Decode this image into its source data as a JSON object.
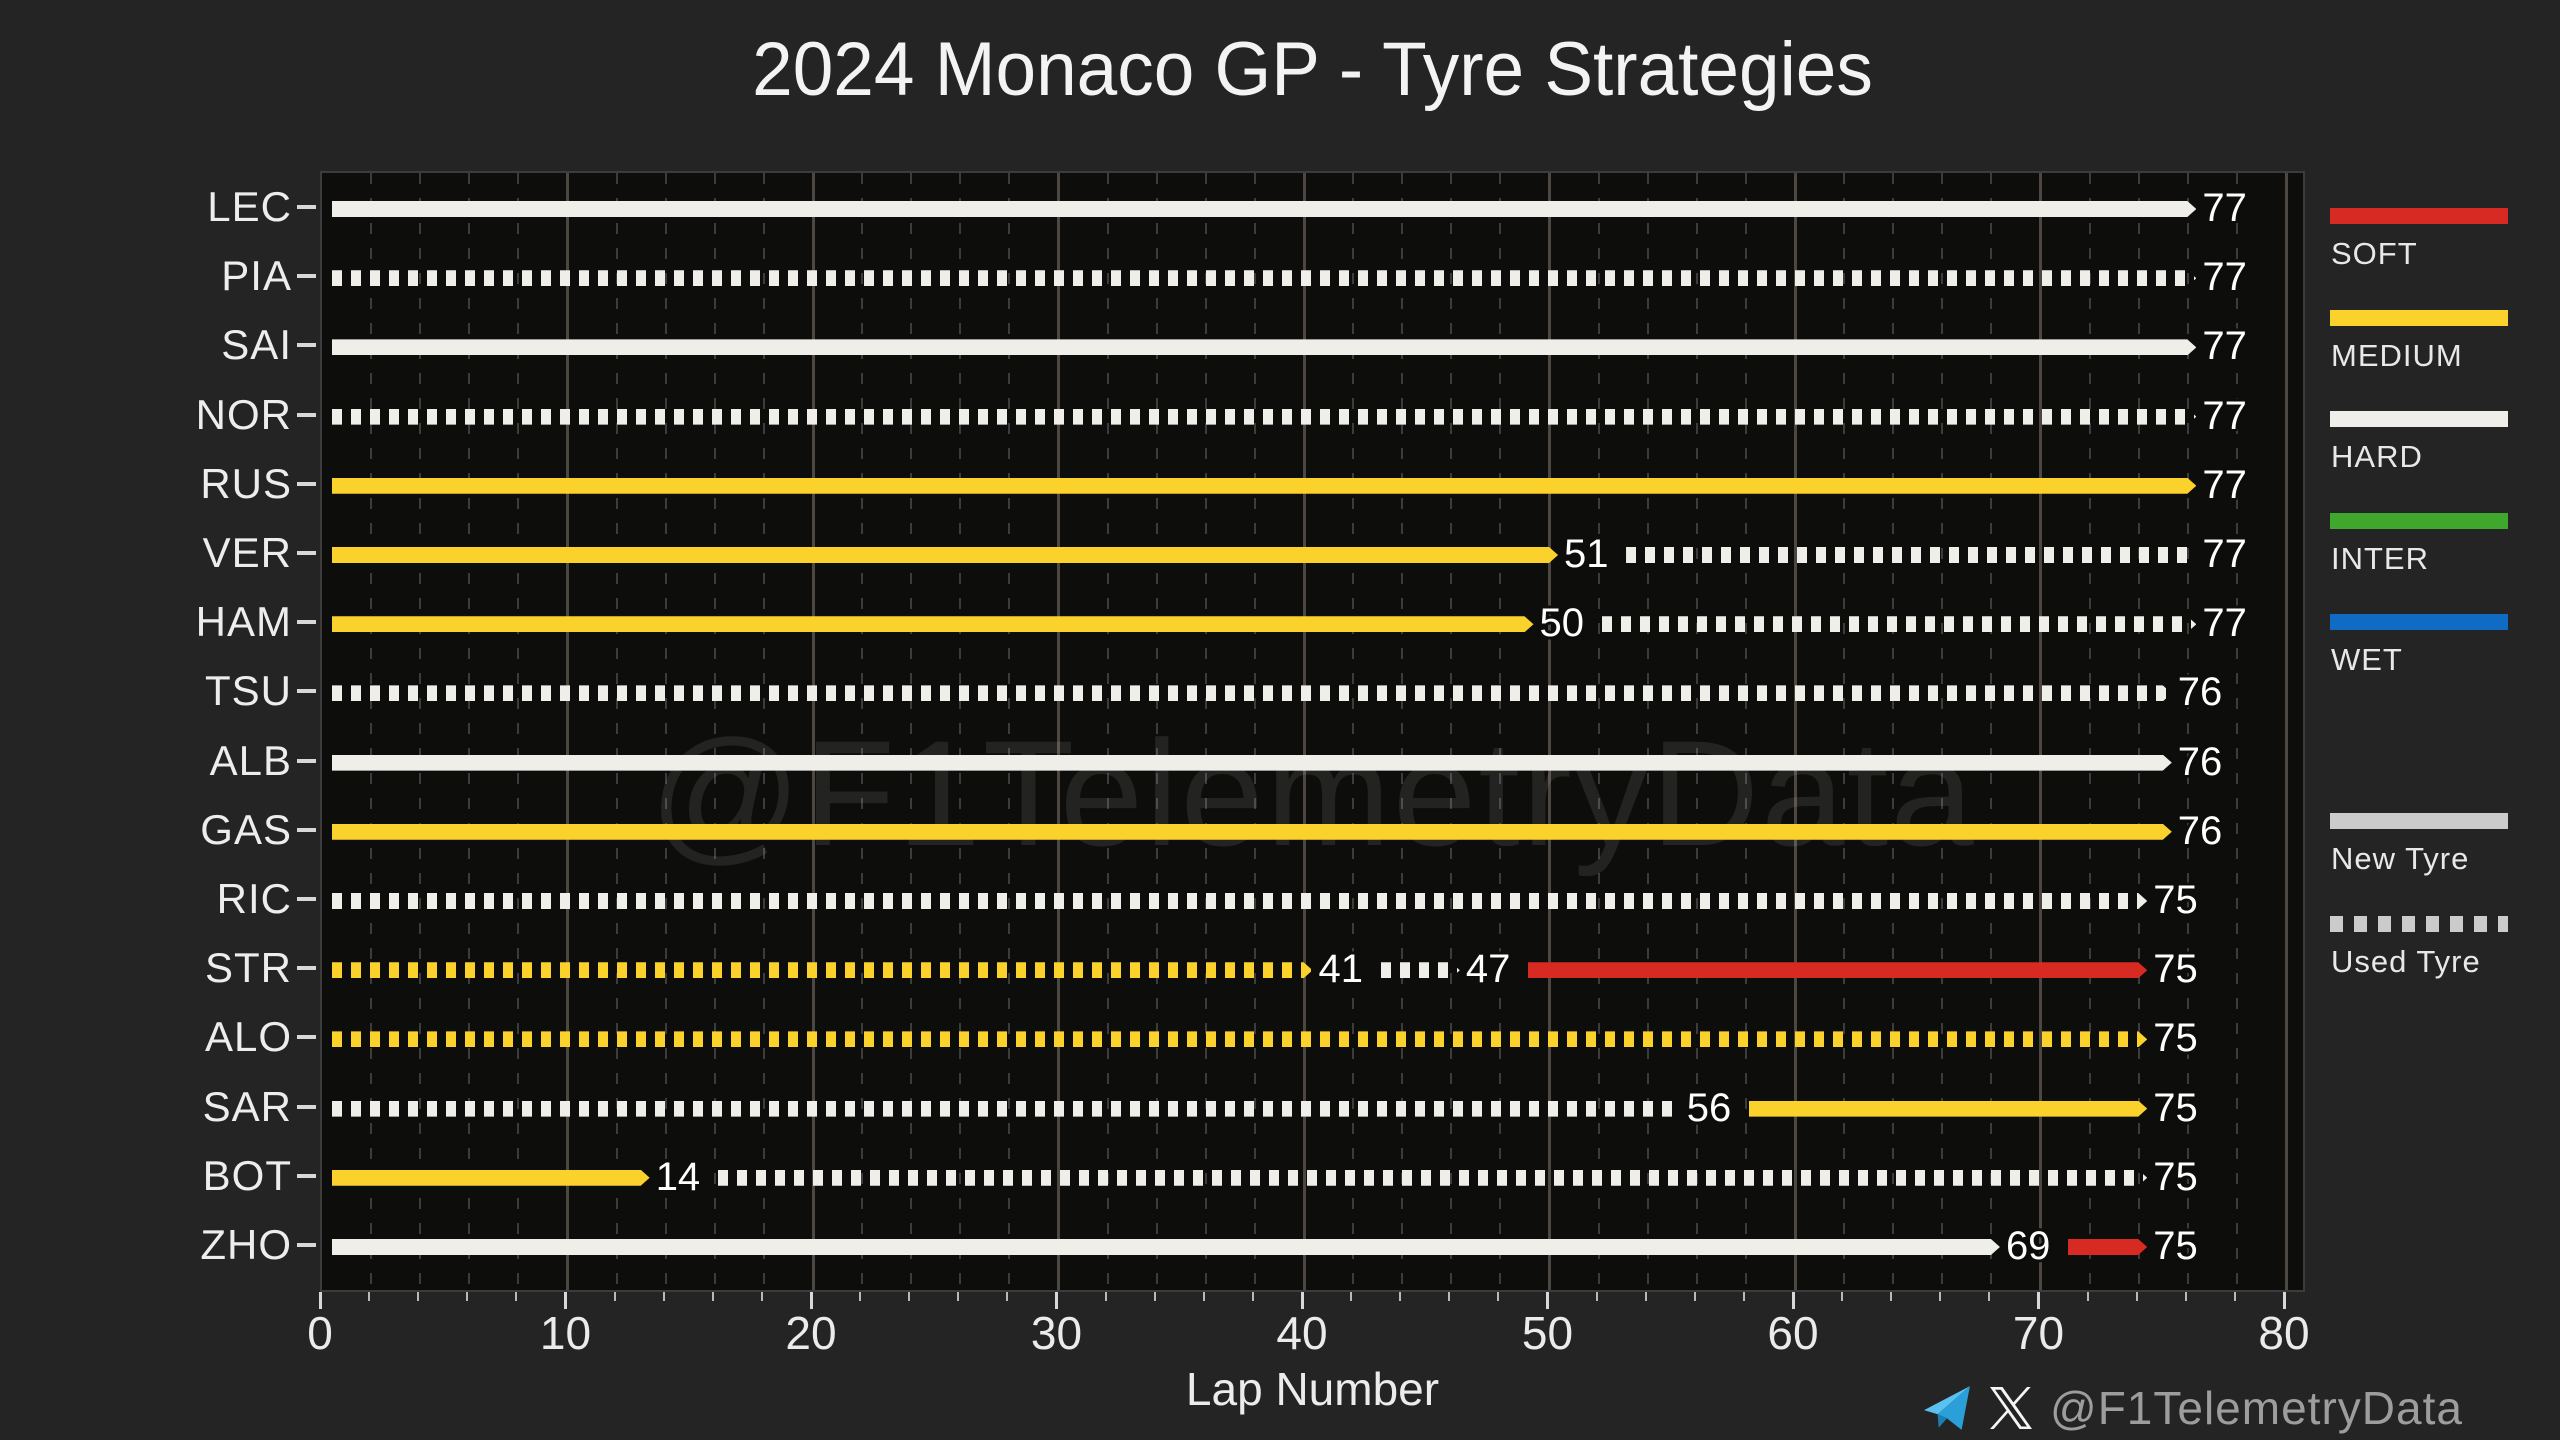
{
  "title": "2024 Monaco GP - Tyre Strategies",
  "watermark": "@F1TelemetryData",
  "footer": {
    "handle": "@F1TelemetryData",
    "icons": [
      "telegram-icon",
      "x-icon"
    ]
  },
  "legend": {
    "compounds": [
      {
        "label": "SOFT",
        "color": "#d62a23"
      },
      {
        "label": "MEDIUM",
        "color": "#fbd12c"
      },
      {
        "label": "HARD",
        "color": "#efeee8"
      },
      {
        "label": "INTER",
        "color": "#3fa72c"
      },
      {
        "label": "WET",
        "color": "#0f6bc4"
      }
    ],
    "usage": [
      {
        "label": "New Tyre",
        "style": "solid"
      },
      {
        "label": "Used Tyre",
        "style": "dashed"
      }
    ],
    "usage_color": "#cbcbcb"
  },
  "chart_data": {
    "type": "bar",
    "orientation": "horizontal-stint-gantt",
    "title": "2024 Monaco GP - Tyre Strategies",
    "xlabel": "Lap Number",
    "xlim": [
      0,
      80
    ],
    "xticks": [
      0,
      10,
      20,
      30,
      40,
      50,
      60,
      70,
      80
    ],
    "minor_tick_step": 2,
    "grid": "vertical, solid at majors, dashed at every 2 laps",
    "legend_position": "right",
    "compound_colors": {
      "SOFT": "#d62a23",
      "MEDIUM": "#fbd12c",
      "HARD": "#efeee8",
      "INTER": "#3fa72c",
      "WET": "#0f6bc4"
    },
    "plot_bg": "#0d0d0c",
    "fig_bg": "#242424",
    "drivers": [
      {
        "driver": "LEC",
        "stints": [
          {
            "compound": "HARD",
            "condition": "new",
            "end_lap": 77
          }
        ]
      },
      {
        "driver": "PIA",
        "stints": [
          {
            "compound": "HARD",
            "condition": "used",
            "end_lap": 77
          }
        ]
      },
      {
        "driver": "SAI",
        "stints": [
          {
            "compound": "HARD",
            "condition": "new",
            "end_lap": 77
          }
        ]
      },
      {
        "driver": "NOR",
        "stints": [
          {
            "compound": "HARD",
            "condition": "used",
            "end_lap": 77
          }
        ]
      },
      {
        "driver": "RUS",
        "stints": [
          {
            "compound": "MEDIUM",
            "condition": "new",
            "end_lap": 77
          }
        ]
      },
      {
        "driver": "VER",
        "stints": [
          {
            "compound": "MEDIUM",
            "condition": "new",
            "end_lap": 51
          },
          {
            "compound": "HARD",
            "condition": "used",
            "end_lap": 77
          }
        ]
      },
      {
        "driver": "HAM",
        "stints": [
          {
            "compound": "MEDIUM",
            "condition": "new",
            "end_lap": 50
          },
          {
            "compound": "HARD",
            "condition": "used",
            "end_lap": 77
          }
        ]
      },
      {
        "driver": "TSU",
        "stints": [
          {
            "compound": "HARD",
            "condition": "used",
            "end_lap": 76
          }
        ]
      },
      {
        "driver": "ALB",
        "stints": [
          {
            "compound": "HARD",
            "condition": "new",
            "end_lap": 76
          }
        ]
      },
      {
        "driver": "GAS",
        "stints": [
          {
            "compound": "MEDIUM",
            "condition": "new",
            "end_lap": 76
          }
        ]
      },
      {
        "driver": "RIC",
        "stints": [
          {
            "compound": "HARD",
            "condition": "used",
            "end_lap": 75
          }
        ]
      },
      {
        "driver": "STR",
        "stints": [
          {
            "compound": "MEDIUM",
            "condition": "used",
            "end_lap": 41
          },
          {
            "compound": "HARD",
            "condition": "used",
            "end_lap": 47
          },
          {
            "compound": "SOFT",
            "condition": "new",
            "end_lap": 75
          }
        ]
      },
      {
        "driver": "ALO",
        "stints": [
          {
            "compound": "MEDIUM",
            "condition": "used",
            "end_lap": 75
          }
        ]
      },
      {
        "driver": "SAR",
        "stints": [
          {
            "compound": "HARD",
            "condition": "used",
            "end_lap": 56
          },
          {
            "compound": "MEDIUM",
            "condition": "new",
            "end_lap": 75
          }
        ]
      },
      {
        "driver": "BOT",
        "stints": [
          {
            "compound": "MEDIUM",
            "condition": "new",
            "end_lap": 14
          },
          {
            "compound": "HARD",
            "condition": "used",
            "end_lap": 75
          }
        ]
      },
      {
        "driver": "ZHO",
        "stints": [
          {
            "compound": "HARD",
            "condition": "new",
            "end_lap": 69
          },
          {
            "compound": "SOFT",
            "condition": "new",
            "end_lap": 75
          }
        ]
      }
    ]
  }
}
